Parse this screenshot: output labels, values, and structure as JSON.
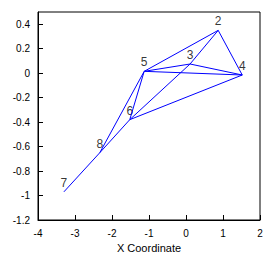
{
  "chart_data": {
    "type": "network",
    "xlabel": "X Coordinate",
    "xlim": [
      -4,
      2
    ],
    "xticks": [
      -4,
      -3,
      -2,
      -1,
      0,
      1,
      2
    ],
    "ylim": [
      -1.2,
      0.5
    ],
    "yticks": [
      -1.2,
      -1,
      -0.8,
      -0.6,
      -0.4,
      -0.2,
      0,
      0.2,
      0.4
    ],
    "grid": false,
    "color": "#0000ff",
    "nodes": [
      {
        "label": "2",
        "x": 0.87,
        "y": 0.35
      },
      {
        "label": "3",
        "x": 0.11,
        "y": 0.075
      },
      {
        "label": "4",
        "x": 1.52,
        "y": -0.015
      },
      {
        "label": "5",
        "x": -1.13,
        "y": 0.015
      },
      {
        "label": "6",
        "x": -1.52,
        "y": -0.38
      },
      {
        "label": "7",
        "x": -3.3,
        "y": -0.97
      },
      {
        "label": "8",
        "x": -2.33,
        "y": -0.65
      }
    ],
    "edges": [
      [
        "7",
        "8"
      ],
      [
        "8",
        "6"
      ],
      [
        "8",
        "5"
      ],
      [
        "6",
        "5"
      ],
      [
        "5",
        "2"
      ],
      [
        "5",
        "3"
      ],
      [
        "5",
        "4"
      ],
      [
        "6",
        "3"
      ],
      [
        "6",
        "4"
      ],
      [
        "3",
        "4"
      ],
      [
        "3",
        "2"
      ],
      [
        "2",
        "4"
      ]
    ]
  }
}
